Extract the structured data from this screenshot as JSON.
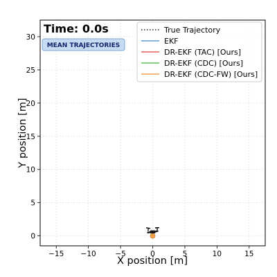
{
  "chart_data": {
    "type": "line",
    "title": "",
    "xlabel": "X position [m]",
    "ylabel": "Y position [m]",
    "xlim": [
      -17.5,
      17.5
    ],
    "ylim": [
      -1.5,
      32.5
    ],
    "xticks": [
      -15,
      -10,
      -5,
      0,
      5,
      10,
      15
    ],
    "yticks": [
      0,
      5,
      10,
      15,
      20,
      25,
      30
    ],
    "grid": true,
    "legend_position": "top-right",
    "time_label": "Time: 0.0s",
    "badge": "MEAN TRAJECTORIES",
    "series": [
      {
        "name": "True Trajectory",
        "color": "#222222",
        "style": "dotted",
        "points": [
          [
            0.0,
            0.0
          ]
        ]
      },
      {
        "name": "EKF",
        "color": "#5b9bd5",
        "style": "solid",
        "points": [
          [
            0.0,
            0.0
          ]
        ]
      },
      {
        "name": "DR-EKF (TAC) [Ours]",
        "color": "#e05b5b",
        "style": "solid",
        "points": [
          [
            0.0,
            0.0
          ]
        ]
      },
      {
        "name": "DR-EKF (CDC) [Ours]",
        "color": "#5cc25c",
        "style": "solid",
        "points": [
          [
            0.0,
            0.0
          ]
        ]
      },
      {
        "name": "DR-EKF (CDC-FW) [Ours]",
        "color": "#f0a04b",
        "style": "solid",
        "points": [
          [
            0.0,
            0.0
          ]
        ]
      }
    ],
    "drone": {
      "x": 0.0,
      "y": 0.6,
      "icon": "drone-icon"
    },
    "estimate_marker": {
      "x": 0.0,
      "y": 0.0,
      "color": "#f0a04b"
    }
  }
}
